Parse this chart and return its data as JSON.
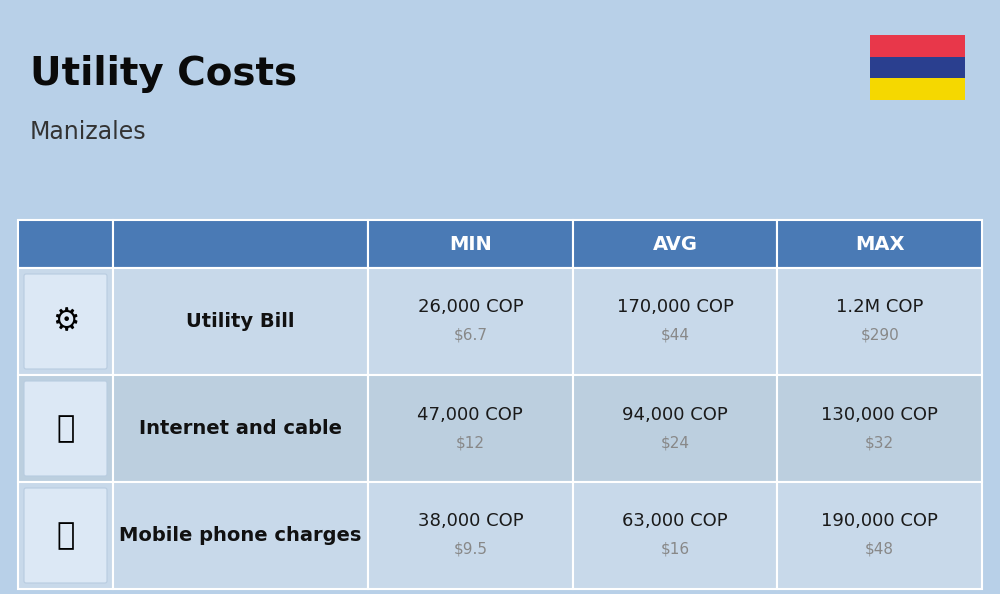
{
  "title": "Utility Costs",
  "subtitle": "Manizales",
  "background_color": "#b8d0e8",
  "header_color": "#4a7ab5",
  "header_text_color": "#ffffff",
  "row_color_1": "#c8d9ea",
  "row_color_2": "#bccfdf",
  "table_border_color": "#4a7ab5",
  "headers": [
    "MIN",
    "AVG",
    "MAX"
  ],
  "rows": [
    {
      "label": "Utility Bill",
      "min_cop": "26,000 COP",
      "min_usd": "$6.7",
      "avg_cop": "170,000 COP",
      "avg_usd": "$44",
      "max_cop": "1.2M COP",
      "max_usd": "$290"
    },
    {
      "label": "Internet and cable",
      "min_cop": "47,000 COP",
      "min_usd": "$12",
      "avg_cop": "94,000 COP",
      "avg_usd": "$24",
      "max_cop": "130,000 COP",
      "max_usd": "$32"
    },
    {
      "label": "Mobile phone charges",
      "min_cop": "38,000 COP",
      "min_usd": "$9.5",
      "avg_cop": "63,000 COP",
      "avg_usd": "$16",
      "max_cop": "190,000 COP",
      "max_usd": "$48"
    }
  ],
  "flag_yellow": "#f5d800",
  "flag_blue": "#2a3f8f",
  "flag_red": "#e8374a",
  "title_fontsize": 28,
  "subtitle_fontsize": 17,
  "header_fontsize": 14,
  "label_fontsize": 14,
  "cop_fontsize": 13,
  "usd_fontsize": 11,
  "usd_color": "#888888",
  "cop_color": "#1a1a1a",
  "label_color": "#111111"
}
